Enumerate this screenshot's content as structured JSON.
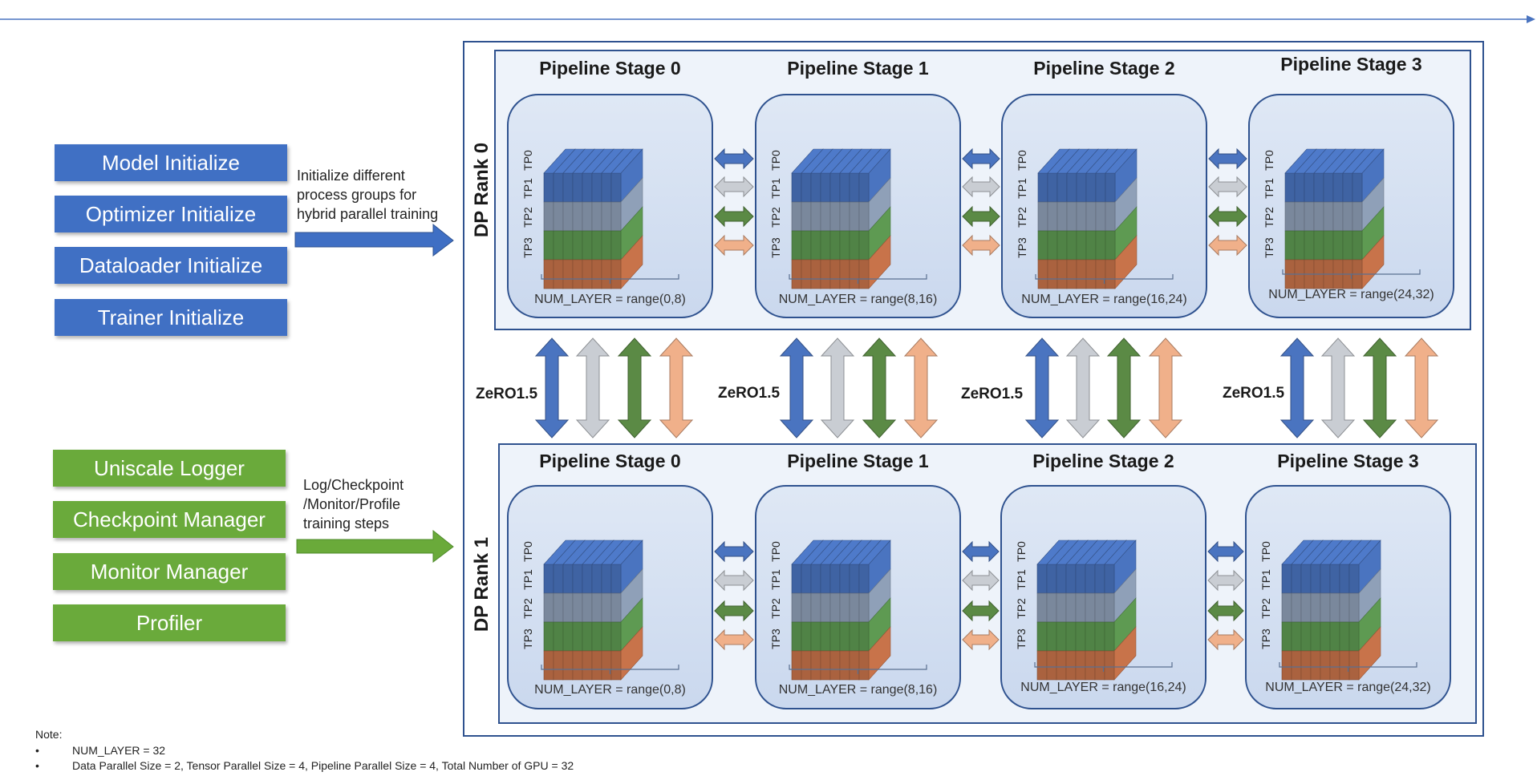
{
  "left_top": {
    "buttons": [
      "Model Initialize",
      "Optimizer Initialize",
      "Dataloader Initialize",
      "Trainer Initialize"
    ],
    "description": [
      "Initialize different",
      "process groups for",
      "hybrid parallel training"
    ],
    "color": "#3f6fc4"
  },
  "left_bottom": {
    "buttons": [
      "Uniscale Logger",
      "Checkpoint Manager",
      "Monitor Manager",
      "Profiler"
    ],
    "description": [
      "Log/Checkpoint",
      "/Monitor/Profile",
      "training steps"
    ],
    "color": "#6aaa3a"
  },
  "ranks": [
    {
      "label": "DP Rank 0",
      "stages": [
        {
          "title": "Pipeline Stage 0",
          "range": "NUM_LAYER = range(0,8)"
        },
        {
          "title": "Pipeline Stage 1",
          "range": "NUM_LAYER = range(8,16)"
        },
        {
          "title": "Pipeline Stage 2",
          "range": "NUM_LAYER = range(16,24)"
        },
        {
          "title": "Pipeline Stage 3",
          "range": "NUM_LAYER = range(24,32)"
        }
      ]
    },
    {
      "label": "DP Rank 1",
      "stages": [
        {
          "title": "Pipeline Stage 0",
          "range": "NUM_LAYER = range(0,8)"
        },
        {
          "title": "Pipeline Stage 1",
          "range": "NUM_LAYER = range(8,16)"
        },
        {
          "title": "Pipeline Stage 2",
          "range": "NUM_LAYER = range(16,24)"
        },
        {
          "title": "Pipeline Stage 3",
          "range": "NUM_LAYER = range(24,32)"
        }
      ]
    }
  ],
  "tp_labels": [
    "TP0",
    "TP1",
    "TP2",
    "TP3"
  ],
  "tp_colors": [
    "#4a74c0",
    "#8fa0b8",
    "#5e9a52",
    "#c8734a"
  ],
  "arrow_colors": [
    "#4a74c0",
    "#c9cdd3",
    "#5b8a45",
    "#f0b08a"
  ],
  "zero_label": "ZeRO1.5",
  "note": {
    "heading": "Note:",
    "items": [
      "NUM_LAYER = 32",
      "Data Parallel Size = 2, Tensor Parallel Size = 4, Pipeline Parallel Size = 4, Total Number of GPU = 32"
    ]
  }
}
